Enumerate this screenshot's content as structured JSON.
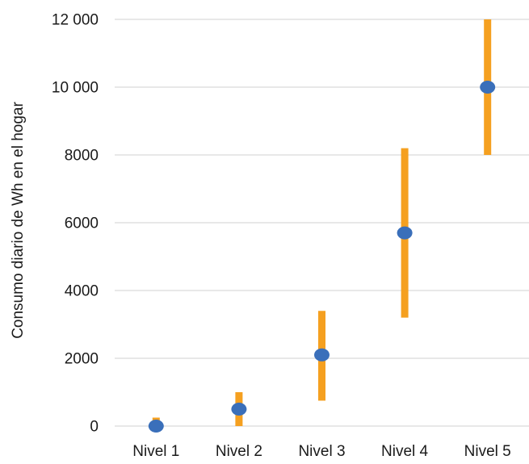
{
  "chart_data": {
    "type": "scatter",
    "title": "",
    "xlabel": "",
    "ylabel": "Consumo diario de Wh en el hogar",
    "categories": [
      "Nivel 1",
      "Nivel 2",
      "Nivel 3",
      "Nivel 4",
      "Nivel 5"
    ],
    "values": [
      0,
      500,
      2100,
      5700,
      10000
    ],
    "ranges": [
      [
        0,
        250
      ],
      [
        0,
        1000
      ],
      [
        750,
        3400
      ],
      [
        3200,
        8200
      ],
      [
        8000,
        12000
      ]
    ],
    "ylim": [
      0,
      12000
    ],
    "yticks": [
      0,
      2000,
      4000,
      6000,
      8000,
      10000,
      12000
    ],
    "ytick_labels": [
      "0",
      "2000",
      "4000",
      "6000",
      "8000",
      "10 000",
      "12 000"
    ],
    "grid": true,
    "legend": "none",
    "colors": {
      "point": "#3a6fba",
      "range": "#f5a020",
      "grid": "#d9d9d9"
    }
  }
}
